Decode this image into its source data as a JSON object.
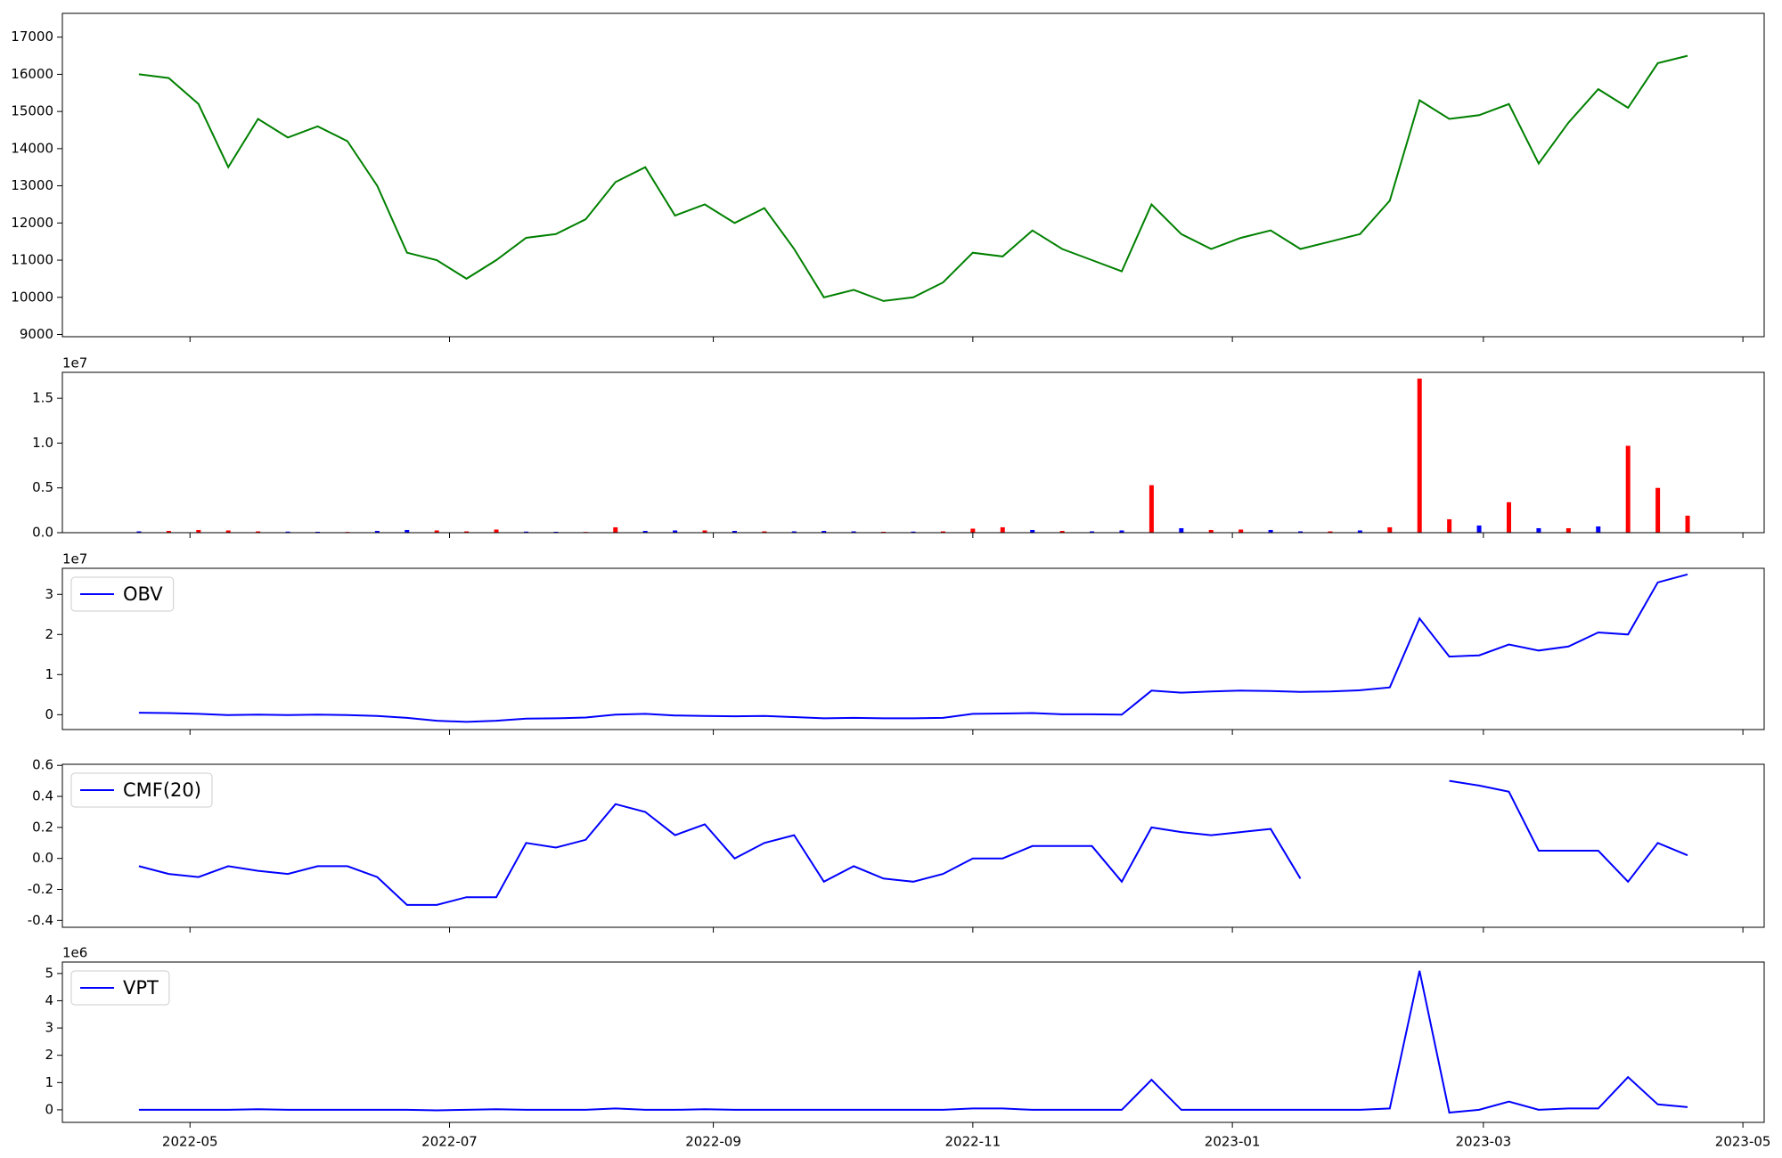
{
  "chart_data": [
    {
      "type": "line",
      "x": [
        "2022-04-19",
        "2022-04-26",
        "2022-05-03",
        "2022-05-10",
        "2022-05-17",
        "2022-05-24",
        "2022-05-31",
        "2022-06-07",
        "2022-06-14",
        "2022-06-21",
        "2022-06-28",
        "2022-07-05",
        "2022-07-12",
        "2022-07-19",
        "2022-07-26",
        "2022-08-02",
        "2022-08-09",
        "2022-08-16",
        "2022-08-23",
        "2022-08-30",
        "2022-09-06",
        "2022-09-13",
        "2022-09-20",
        "2022-09-27",
        "2022-10-04",
        "2022-10-11",
        "2022-10-18",
        "2022-10-25",
        "2022-11-01",
        "2022-11-08",
        "2022-11-15",
        "2022-11-22",
        "2022-11-29",
        "2022-12-06",
        "2022-12-13",
        "2022-12-20",
        "2022-12-27",
        "2023-01-03",
        "2023-01-10",
        "2023-01-17",
        "2023-01-24",
        "2023-01-31",
        "2023-02-07",
        "2023-02-14",
        "2023-02-21",
        "2023-02-28",
        "2023-03-07",
        "2023-03-14",
        "2023-03-21",
        "2023-03-28",
        "2023-04-04",
        "2023-04-11",
        "2023-04-18"
      ],
      "values": [
        16000,
        15900,
        15200,
        13500,
        14800,
        14300,
        14600,
        14200,
        13000,
        11200,
        11000,
        10500,
        11000,
        11600,
        11700,
        12100,
        13100,
        13500,
        12200,
        12500,
        12000,
        12400,
        11300,
        10000,
        10200,
        9900,
        10000,
        10400,
        11200,
        11100,
        11800,
        11300,
        11000,
        10700,
        12500,
        11700,
        11300,
        11600,
        11800,
        11300,
        11500,
        11700,
        12600,
        15300,
        14800,
        14900,
        15200,
        13600,
        14700,
        15600,
        15100,
        16300,
        16500
      ],
      "color": "green",
      "xlim": [
        "2022-04-01",
        "2023-05-06"
      ],
      "ylim": [
        8940,
        17640
      ],
      "yticks": [
        9000,
        10000,
        11000,
        12000,
        13000,
        14000,
        15000,
        16000,
        17000
      ]
    },
    {
      "type": "bar",
      "x": [
        "2022-04-19",
        "2022-04-26",
        "2022-05-03",
        "2022-05-10",
        "2022-05-17",
        "2022-05-24",
        "2022-05-31",
        "2022-06-07",
        "2022-06-14",
        "2022-06-21",
        "2022-06-28",
        "2022-07-05",
        "2022-07-12",
        "2022-07-19",
        "2022-07-26",
        "2022-08-02",
        "2022-08-09",
        "2022-08-16",
        "2022-08-23",
        "2022-08-30",
        "2022-09-06",
        "2022-09-13",
        "2022-09-20",
        "2022-09-27",
        "2022-10-04",
        "2022-10-11",
        "2022-10-18",
        "2022-10-25",
        "2022-11-01",
        "2022-11-08",
        "2022-11-15",
        "2022-11-22",
        "2022-11-29",
        "2022-12-06",
        "2022-12-13",
        "2022-12-20",
        "2022-12-27",
        "2023-01-03",
        "2023-01-10",
        "2023-01-17",
        "2023-01-24",
        "2023-01-31",
        "2023-02-07",
        "2023-02-14",
        "2023-02-21",
        "2023-02-28",
        "2023-03-07",
        "2023-03-14",
        "2023-03-21",
        "2023-03-28",
        "2023-04-04",
        "2023-04-11",
        "2023-04-18"
      ],
      "values": [
        150000,
        200000,
        300000,
        250000,
        150000,
        120000,
        100000,
        80000,
        200000,
        300000,
        250000,
        150000,
        350000,
        120000,
        100000,
        80000,
        600000,
        200000,
        250000,
        250000,
        200000,
        150000,
        150000,
        200000,
        150000,
        100000,
        120000,
        150000,
        450000,
        600000,
        300000,
        200000,
        150000,
        250000,
        5300000,
        500000,
        300000,
        350000,
        300000,
        150000,
        150000,
        250000,
        600000,
        17200000,
        1500000,
        800000,
        3400000,
        500000,
        500000,
        700000,
        9700000,
        5000000,
        1900000
      ],
      "colors": [
        "blue",
        "red",
        "red",
        "red",
        "red",
        "blue",
        "blue",
        "red",
        "blue",
        "blue",
        "red",
        "red",
        "red",
        "blue",
        "blue",
        "red",
        "red",
        "blue",
        "blue",
        "red",
        "blue",
        "red",
        "blue",
        "blue",
        "blue",
        "red",
        "blue",
        "red",
        "red",
        "red",
        "blue",
        "red",
        "blue",
        "blue",
        "red",
        "blue",
        "red",
        "red",
        "blue",
        "blue",
        "red",
        "blue",
        "red",
        "red",
        "red",
        "blue",
        "red",
        "blue",
        "red",
        "blue",
        "red",
        "red",
        "red"
      ],
      "offset_label": "1e7",
      "xlim": [
        "2022-04-01",
        "2023-05-06"
      ],
      "ylim": [
        0,
        17900000
      ],
      "yticks": [
        {
          "value": 0,
          "label": "0.0"
        },
        {
          "value": 5000000,
          "label": "0.5"
        },
        {
          "value": 10000000,
          "label": "1.0"
        },
        {
          "value": 15000000,
          "label": "1.5"
        }
      ]
    },
    {
      "type": "line",
      "x": [
        "2022-04-19",
        "2022-04-26",
        "2022-05-03",
        "2022-05-10",
        "2022-05-17",
        "2022-05-24",
        "2022-05-31",
        "2022-06-07",
        "2022-06-14",
        "2022-06-21",
        "2022-06-28",
        "2022-07-05",
        "2022-07-12",
        "2022-07-19",
        "2022-07-26",
        "2022-08-02",
        "2022-08-09",
        "2022-08-16",
        "2022-08-23",
        "2022-08-30",
        "2022-09-06",
        "2022-09-13",
        "2022-09-20",
        "2022-09-27",
        "2022-10-04",
        "2022-10-11",
        "2022-10-18",
        "2022-10-25",
        "2022-11-01",
        "2022-11-08",
        "2022-11-15",
        "2022-11-22",
        "2022-11-29",
        "2022-12-06",
        "2022-12-13",
        "2022-12-20",
        "2022-12-27",
        "2023-01-03",
        "2023-01-10",
        "2023-01-17",
        "2023-01-24",
        "2023-01-31",
        "2023-02-07",
        "2023-02-14",
        "2023-02-21",
        "2023-02-28",
        "2023-03-07",
        "2023-03-14",
        "2023-03-21",
        "2023-03-28",
        "2023-04-04",
        "2023-04-11",
        "2023-04-18"
      ],
      "series": [
        {
          "name": "OBV",
          "color": "blue",
          "values": [
            500000,
            400000,
            200000,
            -100000,
            0,
            -100000,
            0,
            -100000,
            -300000,
            -800000,
            -1500000,
            -1800000,
            -1500000,
            -1000000,
            -900000,
            -700000,
            0,
            200000,
            -200000,
            -300000,
            -400000,
            -300000,
            -600000,
            -900000,
            -800000,
            -900000,
            -900000,
            -800000,
            200000,
            300000,
            400000,
            100000,
            100000,
            0,
            6000000,
            5500000,
            5800000,
            6000000,
            5900000,
            5700000,
            5800000,
            6100000,
            6800000,
            24000000,
            14500000,
            14800000,
            17500000,
            16000000,
            17000000,
            20500000,
            20000000,
            33000000,
            35000000
          ]
        }
      ],
      "legend": "upper left",
      "offset_label": "1e7",
      "xlim": [
        "2022-04-01",
        "2023-05-06"
      ],
      "ylim": [
        -3700000,
        36500000
      ],
      "yticks": [
        0,
        {
          "value": 10000000,
          "label": "1"
        },
        {
          "value": 20000000,
          "label": "2"
        },
        {
          "value": 30000000,
          "label": "3"
        }
      ]
    },
    {
      "type": "line",
      "x": [
        "2022-04-19",
        "2022-04-26",
        "2022-05-03",
        "2022-05-10",
        "2022-05-17",
        "2022-05-24",
        "2022-05-31",
        "2022-06-07",
        "2022-06-14",
        "2022-06-21",
        "2022-06-28",
        "2022-07-05",
        "2022-07-12",
        "2022-07-19",
        "2022-07-26",
        "2022-08-02",
        "2022-08-09",
        "2022-08-16",
        "2022-08-23",
        "2022-08-30",
        "2022-09-06",
        "2022-09-13",
        "2022-09-20",
        "2022-09-27",
        "2022-10-04",
        "2022-10-11",
        "2022-10-18",
        "2022-10-25",
        "2022-11-01",
        "2022-11-08",
        "2022-11-15",
        "2022-11-22",
        "2022-11-29",
        "2022-12-06",
        "2022-12-13",
        "2022-12-20",
        "2022-12-27",
        "2023-01-03",
        "2023-01-10",
        "2023-01-17",
        "2023-01-24",
        "2023-01-31",
        "2023-02-07",
        "2023-02-14",
        "2023-02-21",
        "2023-02-28",
        "2023-03-07",
        "2023-03-14",
        "2023-03-21",
        "2023-03-28",
        "2023-04-04",
        "2023-04-11",
        "2023-04-18"
      ],
      "series": [
        {
          "name": "CMF(20)",
          "color": "blue",
          "values": [
            -0.05,
            -0.1,
            -0.12,
            -0.05,
            -0.08,
            -0.1,
            -0.05,
            -0.05,
            -0.12,
            -0.3,
            -0.3,
            -0.25,
            -0.25,
            0.1,
            0.07,
            0.12,
            0.35,
            0.3,
            0.15,
            0.22,
            0.0,
            0.1,
            0.15,
            -0.15,
            -0.05,
            -0.13,
            -0.15,
            -0.1,
            0.0,
            0.0,
            0.08,
            0.08,
            0.08,
            -0.15,
            0.2,
            0.17,
            0.15,
            0.17,
            0.19,
            -0.13,
            null,
            null,
            null,
            null,
            0.5,
            0.47,
            0.43,
            0.05,
            0.05,
            0.05,
            -0.15,
            0.1,
            0.02
          ]
        }
      ],
      "legend": "upper left",
      "xlim": [
        "2022-04-01",
        "2023-05-06"
      ],
      "ylim": [
        -0.444,
        0.607
      ],
      "yticks": [
        -0.4,
        -0.2,
        {
          "value": 0,
          "label": "0.0"
        },
        0.2,
        0.4,
        0.6
      ]
    },
    {
      "type": "line",
      "x": [
        "2022-04-19",
        "2022-04-26",
        "2022-05-03",
        "2022-05-10",
        "2022-05-17",
        "2022-05-24",
        "2022-05-31",
        "2022-06-07",
        "2022-06-14",
        "2022-06-21",
        "2022-06-28",
        "2022-07-05",
        "2022-07-12",
        "2022-07-19",
        "2022-07-26",
        "2022-08-02",
        "2022-08-09",
        "2022-08-16",
        "2022-08-23",
        "2022-08-30",
        "2022-09-06",
        "2022-09-13",
        "2022-09-20",
        "2022-09-27",
        "2022-10-04",
        "2022-10-11",
        "2022-10-18",
        "2022-10-25",
        "2022-11-01",
        "2022-11-08",
        "2022-11-15",
        "2022-11-22",
        "2022-11-29",
        "2022-12-06",
        "2022-12-13",
        "2022-12-20",
        "2022-12-27",
        "2023-01-03",
        "2023-01-10",
        "2023-01-17",
        "2023-01-24",
        "2023-01-31",
        "2023-02-07",
        "2023-02-14",
        "2023-02-21",
        "2023-02-28",
        "2023-03-07",
        "2023-03-14",
        "2023-03-21",
        "2023-03-28",
        "2023-04-04",
        "2023-04-11",
        "2023-04-18"
      ],
      "series": [
        {
          "name": "VPT",
          "color": "blue",
          "values": [
            0,
            0,
            0,
            0,
            20000,
            0,
            0,
            0,
            0,
            0,
            -20000,
            0,
            20000,
            0,
            0,
            0,
            50000,
            0,
            0,
            20000,
            0,
            0,
            0,
            0,
            0,
            0,
            0,
            0,
            50000,
            50000,
            0,
            0,
            0,
            0,
            1100000,
            0,
            0,
            0,
            0,
            0,
            0,
            0,
            50000,
            5100000,
            -100000,
            0,
            300000,
            0,
            50000,
            50000,
            1200000,
            200000,
            100000
          ]
        }
      ],
      "legend": "upper left",
      "offset_label": "1e6",
      "xlim": [
        "2022-04-01",
        "2023-05-06"
      ],
      "ylim": [
        -460000,
        5420000
      ],
      "yticks": [
        0,
        {
          "value": 1000000,
          "label": "1"
        },
        {
          "value": 2000000,
          "label": "2"
        },
        {
          "value": 3000000,
          "label": "3"
        },
        {
          "value": 4000000,
          "label": "4"
        },
        {
          "value": 5000000,
          "label": "5"
        }
      ],
      "xticks": [
        {
          "value": "2022-05-01",
          "label": "2022-05"
        },
        {
          "value": "2022-07-01",
          "label": "2022-07"
        },
        {
          "value": "2022-09-01",
          "label": "2022-09"
        },
        {
          "value": "2022-11-01",
          "label": "2022-11"
        },
        {
          "value": "2023-01-01",
          "label": "2023-01"
        },
        {
          "value": "2023-03-01",
          "label": "2023-03"
        },
        {
          "value": "2023-05-01",
          "label": "2023-05"
        }
      ]
    }
  ]
}
